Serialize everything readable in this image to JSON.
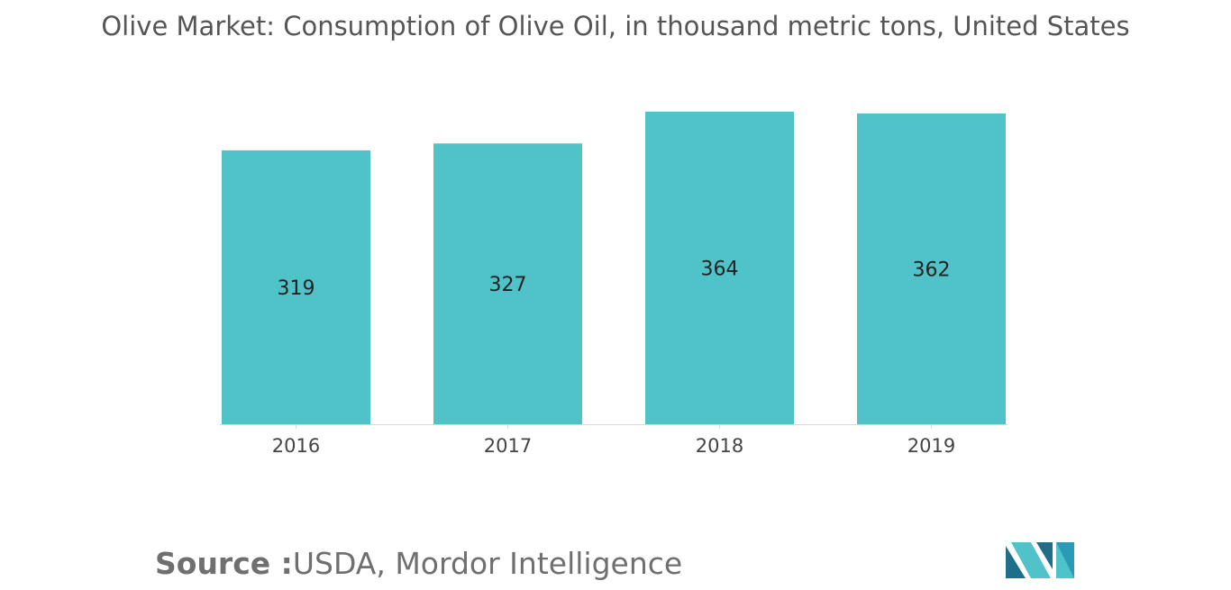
{
  "title": "Olive Market: Consumption of Olive Oil, in thousand metric tons, United States",
  "source": {
    "prefix": "Source :",
    "text": "USDA, Mordor Intelligence"
  },
  "logo": {
    "icon": "mordor-intelligence-logo-icon",
    "colors": [
      "#1f6f8b",
      "#4fc3c9",
      "#2a9bb7"
    ]
  },
  "colors": {
    "bar": "#50c3c9",
    "axis": "#d8d8d8"
  },
  "chart_data": {
    "type": "bar",
    "categories": [
      "2016",
      "2017",
      "2018",
      "2019"
    ],
    "values": [
      319,
      327,
      364,
      362
    ],
    "xlabel": "",
    "ylabel": "",
    "ylim": [
      0,
      364
    ],
    "grid": false,
    "legend": "none",
    "value_labels": "inside-center"
  }
}
